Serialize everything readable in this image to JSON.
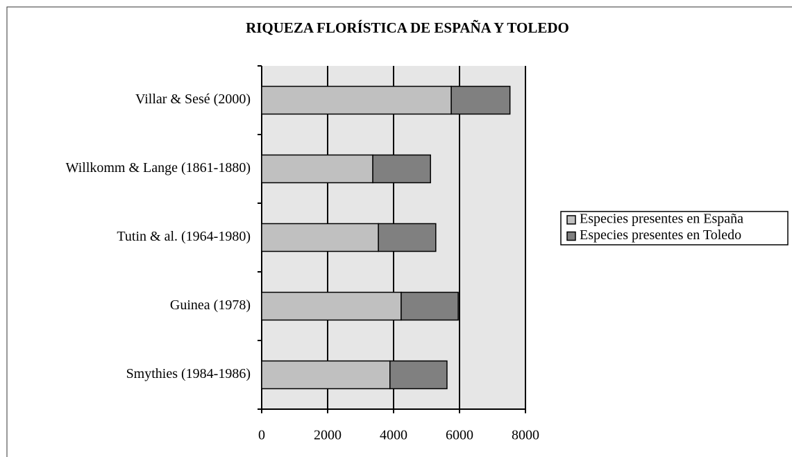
{
  "chart_data": {
    "type": "stacked-barh",
    "title": "RIQUEZA FLORÍSTICA DE ESPAÑA Y TOLEDO",
    "categories": [
      "Villar & Sesé (2000)",
      "Willkomm & Lange (1861-1880)",
      "Tutin & al. (1964-1980)",
      "Guinea (1978)",
      "Smythies (1984-1986)"
    ],
    "series": [
      {
        "name": "Especies presentes en España",
        "color": "#c0c0c0",
        "values": [
          5750,
          3370,
          3540,
          4230,
          3890
        ]
      },
      {
        "name": "Especies presentes en Toledo",
        "color": "#808080",
        "values": [
          1780,
          1750,
          1740,
          1730,
          1730
        ]
      }
    ],
    "xlim": [
      0,
      8000
    ],
    "xticks": [
      0,
      2000,
      4000,
      6000,
      8000
    ],
    "grid": true,
    "legend": "right"
  }
}
